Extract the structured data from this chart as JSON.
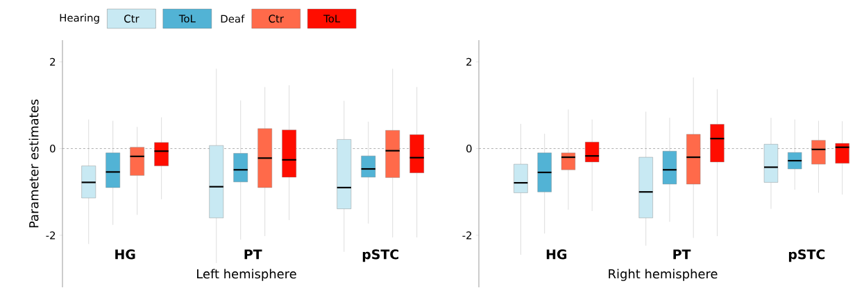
{
  "chart_data": [
    {
      "type": "box",
      "categories": [
        "HG",
        "PT",
        "pSTC"
      ],
      "xlabel": "Left hemisphere",
      "ylabel": "Parameter estimates",
      "ylim": [
        -3.2,
        2.5
      ],
      "yticks": [
        -2,
        0,
        2
      ],
      "legend": "top left",
      "grid": false,
      "annotations": [
        "Hearing",
        "Deaf"
      ],
      "ref_lines": [
        {
          "axis": "y",
          "value": 0,
          "color": "#999999",
          "line_style": "dashed"
        }
      ],
      "series": [
        {
          "name": "Ctr",
          "color": "#c8e9f3",
          "boxes": [
            {
              "low": -2.2,
              "q1": -1.14,
              "median": -0.78,
              "q3": -0.4,
              "high": 0.67
            },
            {
              "low": -2.64,
              "q1": -1.6,
              "median": -0.88,
              "q3": 0.07,
              "high": 1.84
            },
            {
              "low": -2.38,
              "q1": -1.39,
              "median": -0.9,
              "q3": 0.21,
              "high": 1.1
            }
          ]
        },
        {
          "name": "ToL",
          "color": "#52b3d5",
          "boxes": [
            {
              "low": -1.76,
              "q1": -0.9,
              "median": -0.54,
              "q3": -0.1,
              "high": 0.64
            },
            {
              "low": -2.1,
              "q1": -0.77,
              "median": -0.49,
              "q3": -0.11,
              "high": 1.11
            },
            {
              "low": -1.73,
              "q1": -0.66,
              "median": -0.47,
              "q3": -0.17,
              "high": 0.62
            }
          ]
        },
        {
          "name": "Ctr",
          "color": "#ff6a4a",
          "boxes": [
            {
              "low": -1.53,
              "q1": -0.62,
              "median": -0.18,
              "q3": 0.03,
              "high": 0.5
            },
            {
              "low": -2.02,
              "q1": -0.9,
              "median": -0.22,
              "q3": 0.46,
              "high": 1.42
            },
            {
              "low": -2.05,
              "q1": -0.67,
              "median": -0.05,
              "q3": 0.42,
              "high": 1.84
            }
          ]
        },
        {
          "name": "ToL",
          "color": "#ff0d00",
          "boxes": [
            {
              "low": -1.17,
              "q1": -0.4,
              "median": -0.06,
              "q3": 0.14,
              "high": 0.72
            },
            {
              "low": -1.65,
              "q1": -0.66,
              "median": -0.26,
              "q3": 0.43,
              "high": 1.46
            },
            {
              "low": -2.05,
              "q1": -0.56,
              "median": -0.21,
              "q3": 0.32,
              "high": 1.42
            }
          ]
        }
      ]
    },
    {
      "type": "box",
      "categories": [
        "HG",
        "PT",
        "pSTC"
      ],
      "xlabel": "Right hemisphere",
      "ylim": [
        -3.2,
        2.5
      ],
      "yticks": [
        -2,
        0,
        2
      ],
      "grid": false,
      "ref_lines": [
        {
          "axis": "y",
          "value": 0,
          "color": "#999999",
          "line_style": "dashed"
        }
      ],
      "series": [
        {
          "color": "#c8e9f3",
          "boxes": [
            {
              "low": -2.45,
              "q1": -1.02,
              "median": -0.79,
              "q3": -0.36,
              "high": 0.57
            },
            {
              "low": -2.24,
              "q1": -1.6,
              "median": -1.0,
              "q3": -0.2,
              "high": 0.85
            },
            {
              "low": -1.39,
              "q1": -0.78,
              "median": -0.43,
              "q3": 0.1,
              "high": 0.71
            }
          ]
        },
        {
          "color": "#52b3d5",
          "boxes": [
            {
              "low": -1.96,
              "q1": -1.0,
              "median": -0.55,
              "q3": -0.1,
              "high": 0.34
            },
            {
              "low": -1.69,
              "q1": -0.82,
              "median": -0.49,
              "q3": -0.06,
              "high": 0.71
            },
            {
              "low": -0.95,
              "q1": -0.47,
              "median": -0.28,
              "q3": -0.09,
              "high": 0.67
            }
          ]
        },
        {
          "color": "#ff6a4a",
          "boxes": [
            {
              "low": -1.41,
              "q1": -0.49,
              "median": -0.2,
              "q3": -0.1,
              "high": 0.9
            },
            {
              "low": -2.06,
              "q1": -0.82,
              "median": -0.2,
              "q3": 0.33,
              "high": 1.64
            },
            {
              "low": -1.02,
              "q1": -0.36,
              "median": -0.02,
              "q3": 0.19,
              "high": 0.64
            }
          ]
        },
        {
          "color": "#ff0d00",
          "boxes": [
            {
              "low": -1.44,
              "q1": -0.31,
              "median": -0.17,
              "q3": 0.15,
              "high": 0.67
            },
            {
              "low": -2.02,
              "q1": -0.31,
              "median": 0.23,
              "q3": 0.56,
              "high": 1.37
            },
            {
              "low": -1.06,
              "q1": -0.34,
              "median": 0.03,
              "q3": 0.12,
              "high": 0.63
            }
          ]
        }
      ]
    }
  ]
}
